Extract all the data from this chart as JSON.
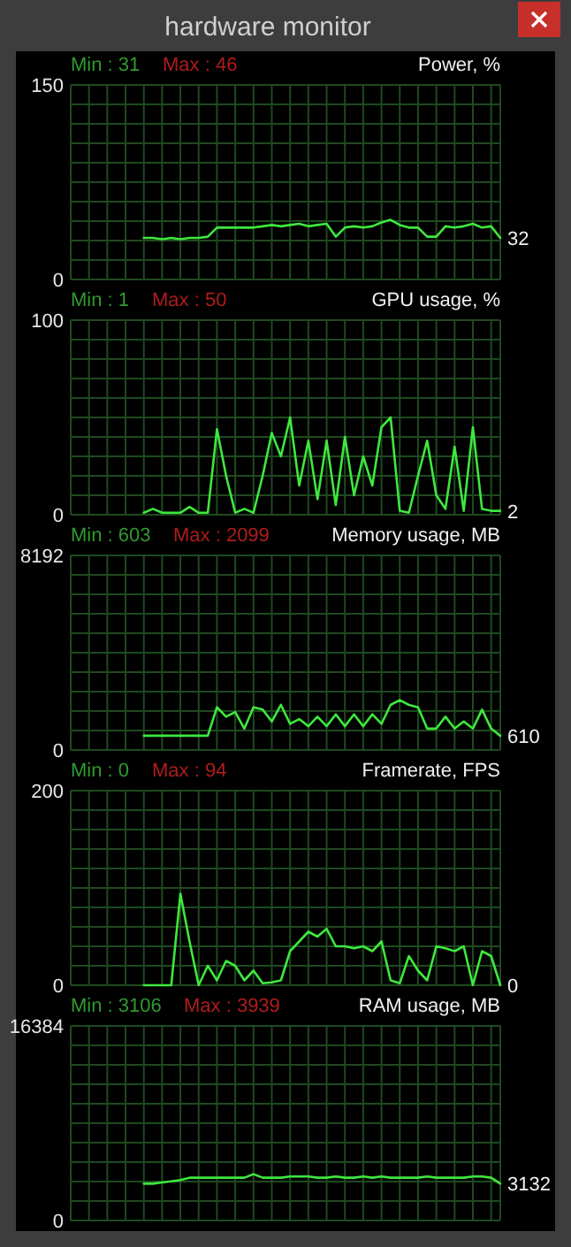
{
  "chart_data": [
    {
      "type": "line",
      "title": "hardware monitor",
      "subtitle": "Power, %",
      "categories": [
        null,
        null,
        null,
        null,
        null,
        null,
        null,
        null,
        null,
        null,
        null,
        null,
        null,
        null,
        null,
        null,
        null,
        null,
        null,
        null,
        null,
        null,
        null,
        null,
        null,
        null,
        null,
        null,
        null,
        null,
        null,
        null,
        null,
        null,
        null,
        null,
        null,
        null,
        null,
        null,
        null,
        null,
        null,
        null,
        null,
        null,
        null,
        null
      ],
      "series": [
        {
          "color": "#3ee83e",
          "values": [
            null,
            null,
            null,
            null,
            null,
            null,
            null,
            null,
            32,
            32,
            31,
            32,
            31,
            32,
            32,
            33,
            40,
            40,
            40,
            40,
            40,
            41,
            42,
            41,
            42,
            43,
            41,
            42,
            43,
            33,
            40,
            41,
            40,
            41,
            44,
            46,
            42,
            40,
            40,
            33,
            33,
            41,
            40,
            41,
            43,
            40,
            41,
            32
          ]
        }
      ],
      "ylim": [
        0,
        150
      ],
      "yticks": [
        0,
        {
          "value": 15,
          "label": null
        },
        {
          "value": 30,
          "label": null
        },
        {
          "value": 45,
          "label": null
        },
        {
          "value": 60,
          "label": null
        },
        {
          "value": 75,
          "label": null
        },
        {
          "value": 90,
          "label": null
        },
        {
          "value": 105,
          "label": null
        },
        {
          "value": 120,
          "label": null
        },
        {
          "value": 135,
          "label": null
        },
        150
      ],
      "grid": true,
      "tick_labels": "y",
      "annotations": [
        "Min : 31",
        "Max : 46",
        "32"
      ]
    },
    {
      "type": "line",
      "subtitle": "GPU usage, %",
      "categories": [
        null,
        null,
        null,
        null,
        null,
        null,
        null,
        null,
        null,
        null,
        null,
        null,
        null,
        null,
        null,
        null,
        null,
        null,
        null,
        null,
        null,
        null,
        null,
        null,
        null,
        null,
        null,
        null,
        null,
        null,
        null,
        null,
        null,
        null,
        null,
        null,
        null,
        null,
        null,
        null,
        null,
        null,
        null,
        null,
        null,
        null,
        null,
        null
      ],
      "series": [
        {
          "color": "#3ee83e",
          "values": [
            null,
            null,
            null,
            null,
            null,
            null,
            null,
            null,
            1,
            3,
            1,
            1,
            1,
            4,
            1,
            1,
            44,
            20,
            1,
            3,
            1,
            20,
            42,
            30,
            50,
            15,
            38,
            8,
            38,
            5,
            40,
            10,
            30,
            15,
            45,
            50,
            2,
            1,
            20,
            38,
            10,
            3,
            35,
            2,
            45,
            3,
            2,
            2
          ]
        }
      ],
      "ylim": [
        0,
        100
      ],
      "yticks": [
        0,
        {
          "value": 10,
          "label": null
        },
        {
          "value": 20,
          "label": null
        },
        {
          "value": 30,
          "label": null
        },
        {
          "value": 40,
          "label": null
        },
        {
          "value": 50,
          "label": null
        },
        {
          "value": 60,
          "label": null
        },
        {
          "value": 70,
          "label": null
        },
        {
          "value": 80,
          "label": null
        },
        {
          "value": 90,
          "label": null
        },
        100
      ],
      "grid": true,
      "tick_labels": "y",
      "annotations": [
        "Min : 1",
        "Max : 50",
        "2"
      ]
    },
    {
      "type": "line",
      "subtitle": "Memory usage, MB",
      "categories": [
        null,
        null,
        null,
        null,
        null,
        null,
        null,
        null,
        null,
        null,
        null,
        null,
        null,
        null,
        null,
        null,
        null,
        null,
        null,
        null,
        null,
        null,
        null,
        null,
        null,
        null,
        null,
        null,
        null,
        null,
        null,
        null,
        null,
        null,
        null,
        null,
        null,
        null,
        null,
        null,
        null,
        null,
        null,
        null,
        null,
        null,
        null,
        null
      ],
      "series": [
        {
          "color": "#3ee83e",
          "values": [
            null,
            null,
            null,
            null,
            null,
            null,
            null,
            null,
            600,
            600,
            600,
            600,
            600,
            600,
            600,
            600,
            1800,
            1400,
            1600,
            900,
            1800,
            1700,
            1200,
            1900,
            1100,
            1300,
            1000,
            1400,
            1000,
            1500,
            1000,
            1500,
            1000,
            1500,
            1100,
            1900,
            2100,
            1900,
            1800,
            900,
            900,
            1400,
            900,
            1200,
            900,
            1700,
            900,
            600
          ]
        }
      ],
      "ylim": [
        0,
        8192
      ],
      "yticks": [
        0,
        {
          "value": 819.2,
          "label": null
        },
        {
          "value": 1638.4,
          "label": null
        },
        {
          "value": 2457.6,
          "label": null
        },
        {
          "value": 3276.8,
          "label": null
        },
        {
          "value": 4096,
          "label": null
        },
        {
          "value": 4915.2,
          "label": null
        },
        {
          "value": 5734.4,
          "label": null
        },
        {
          "value": 6553.6,
          "label": null
        },
        {
          "value": 7372.8,
          "label": null
        },
        8192
      ],
      "grid": true,
      "tick_labels": "y",
      "annotations": [
        "Min : 603",
        "Max : 2099",
        "610"
      ]
    },
    {
      "type": "line",
      "subtitle": "Framerate, FPS",
      "categories": [
        null,
        null,
        null,
        null,
        null,
        null,
        null,
        null,
        null,
        null,
        null,
        null,
        null,
        null,
        null,
        null,
        null,
        null,
        null,
        null,
        null,
        null,
        null,
        null,
        null,
        null,
        null,
        null,
        null,
        null,
        null,
        null,
        null,
        null,
        null,
        null,
        null,
        null,
        null,
        null,
        null,
        null,
        null,
        null,
        null,
        null,
        null,
        null
      ],
      "series": [
        {
          "color": "#3ee83e",
          "values": [
            null,
            null,
            null,
            null,
            null,
            null,
            null,
            null,
            0,
            0,
            0,
            0,
            94,
            45,
            0,
            20,
            5,
            25,
            20,
            5,
            15,
            2,
            3,
            5,
            35,
            45,
            55,
            50,
            58,
            40,
            40,
            38,
            40,
            35,
            45,
            5,
            2,
            30,
            15,
            5,
            40,
            38,
            35,
            40,
            0,
            35,
            30,
            0
          ]
        }
      ],
      "ylim": [
        0,
        200
      ],
      "yticks": [
        0,
        {
          "value": 20,
          "label": null
        },
        {
          "value": 40,
          "label": null
        },
        {
          "value": 60,
          "label": null
        },
        {
          "value": 80,
          "label": null
        },
        {
          "value": 100,
          "label": null
        },
        {
          "value": 120,
          "label": null
        },
        {
          "value": 140,
          "label": null
        },
        {
          "value": 160,
          "label": null
        },
        {
          "value": 180,
          "label": null
        },
        200
      ],
      "grid": true,
      "tick_labels": "y",
      "annotations": [
        "Min : 0",
        "Max : 94",
        "0"
      ]
    },
    {
      "type": "line",
      "subtitle": "RAM usage, MB",
      "categories": [
        null,
        null,
        null,
        null,
        null,
        null,
        null,
        null,
        null,
        null,
        null,
        null,
        null,
        null,
        null,
        null,
        null,
        null,
        null,
        null,
        null,
        null,
        null,
        null,
        null,
        null,
        null,
        null,
        null,
        null,
        null,
        null,
        null,
        null,
        null,
        null,
        null,
        null,
        null,
        null,
        null,
        null,
        null,
        null,
        null,
        null,
        null,
        null
      ],
      "series": [
        {
          "color": "#3ee83e",
          "values": [
            null,
            null,
            null,
            null,
            null,
            null,
            null,
            null,
            3100,
            3100,
            3200,
            3300,
            3400,
            3600,
            3600,
            3600,
            3600,
            3600,
            3600,
            3600,
            3900,
            3600,
            3600,
            3600,
            3700,
            3700,
            3700,
            3600,
            3600,
            3700,
            3600,
            3600,
            3700,
            3600,
            3700,
            3600,
            3600,
            3600,
            3600,
            3700,
            3600,
            3600,
            3600,
            3600,
            3700,
            3700,
            3600,
            3100
          ]
        }
      ],
      "ylim": [
        0,
        16384
      ],
      "yticks": [
        0,
        {
          "value": 1638.4,
          "label": null
        },
        {
          "value": 3276.8,
          "label": null
        },
        {
          "value": 4915.2,
          "label": null
        },
        {
          "value": 6553.6,
          "label": null
        },
        {
          "value": 8192,
          "label": null
        },
        {
          "value": 9830.4,
          "label": null
        },
        {
          "value": 11468.8,
          "label": null
        },
        {
          "value": 13107.2,
          "label": null
        },
        {
          "value": 14745.6,
          "label": null
        },
        16384
      ],
      "grid": true,
      "tick_labels": "y",
      "annotations": [
        "Min : 3106",
        "Max : 3939",
        "3132"
      ]
    }
  ]
}
